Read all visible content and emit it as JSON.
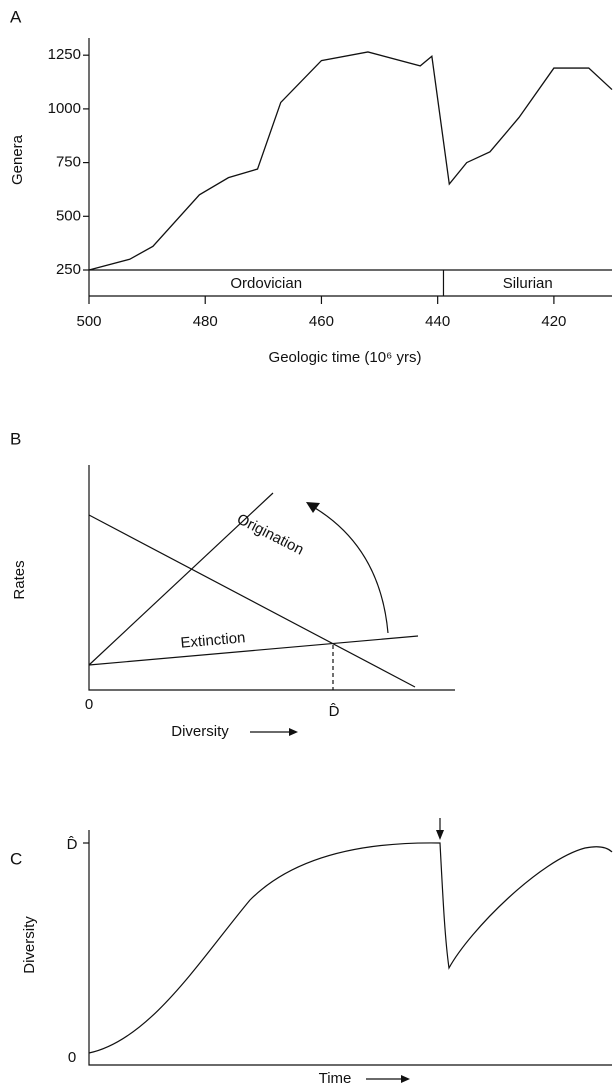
{
  "chart_data": [
    {
      "type": "line",
      "panel_label": "A",
      "y_label": "Genera",
      "x_label": "Geologic time (10⁶ yrs)",
      "xlim": [
        500,
        410
      ],
      "ylim": [
        250,
        1330
      ],
      "xticks": [
        500,
        480,
        460,
        440,
        420
      ],
      "yticks": [
        250,
        500,
        750,
        1000,
        1250
      ],
      "periods": [
        {
          "name": "Ordovician",
          "start": 500,
          "end": 439
        },
        {
          "name": "Silurian",
          "start": 439,
          "end": 410
        }
      ],
      "series": [
        {
          "color": "#111111",
          "x": [
            500,
            493,
            489,
            481,
            476,
            471,
            467,
            460,
            452,
            443,
            441,
            438,
            435,
            431,
            426,
            420,
            414,
            410
          ],
          "values": [
            250,
            300,
            360,
            600,
            680,
            720,
            1030,
            1225,
            1265,
            1200,
            1245,
            650,
            750,
            800,
            960,
            1190,
            1190,
            1090
          ]
        }
      ]
    }
  ],
  "panel_b": {
    "panel_label": "B",
    "y_label": "Rates",
    "x_label": "Diversity",
    "origin": "0",
    "equilibrium": "D̂",
    "line1": "Origination",
    "line2": "Extinction"
  },
  "panel_c": {
    "panel_label": "C",
    "y_label": "Diversity",
    "x_label": "Time",
    "top": "D̂",
    "origin": "0"
  }
}
